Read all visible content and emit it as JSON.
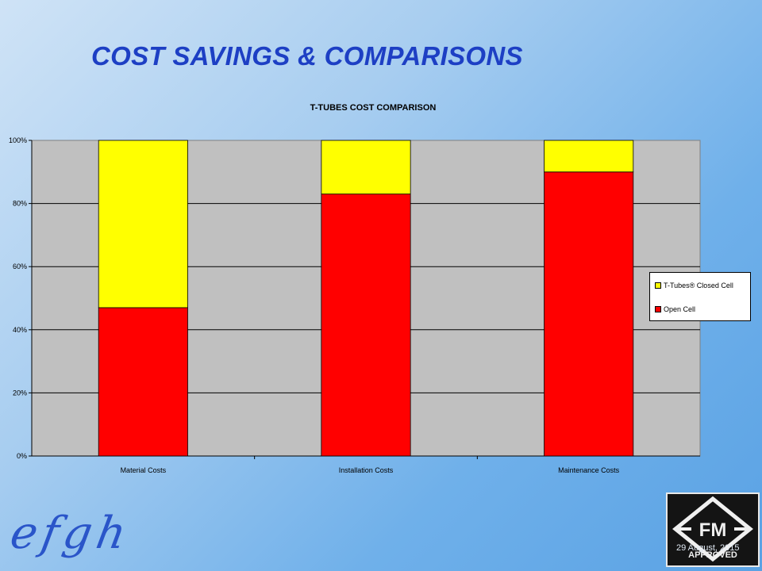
{
  "slide": {
    "title": "COST SAVINGS & COMPARISONS",
    "date": "29 August, 2015",
    "badge_text": "FM",
    "badge_subtext": "APPROVED"
  },
  "chart_data": {
    "type": "bar",
    "stacked": true,
    "title": "T-TUBES COST COMPARISON",
    "categories": [
      "Material Costs",
      "Installation Costs",
      "Maintenance Costs"
    ],
    "series": [
      {
        "name": "Open Cell",
        "values": [
          0.47,
          0.83,
          0.9
        ],
        "color": "#ff0000"
      },
      {
        "name": "T-Tubes® Closed Cell",
        "values": [
          0.53,
          0.17,
          0.1
        ],
        "color": "#ffff00"
      }
    ],
    "legend_order": [
      "T-Tubes® Closed Cell",
      "Open Cell"
    ],
    "ylim": [
      0,
      1
    ],
    "yticks": [
      "0%",
      "20%",
      "40%",
      "60%",
      "80%",
      "100%"
    ],
    "xlabel": "",
    "ylabel": "",
    "grid": true,
    "legend_position": "right",
    "plot_background": "#c0c0c0"
  },
  "colors": {
    "title": "#1d3fc4",
    "background": "#6fb0ea"
  }
}
